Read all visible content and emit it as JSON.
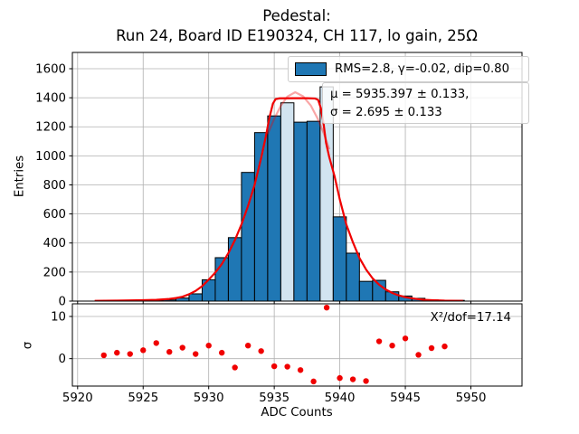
{
  "title": {
    "line1": "Pedestal:",
    "line2": "Run 24, Board ID E190324, CH 117, lo gain, 25Ω"
  },
  "legend": {
    "entry1": "RMS=2.8, γ=-0.02, dip=0.80",
    "mu_line": "μ = 5935.397 ± 0.133,",
    "sigma_line": "σ = 2.695 ± 0.133"
  },
  "annotation": {
    "chi2": "X²/dof=17.14"
  },
  "colors": {
    "bar": "#1f77b4",
    "bar_highlight": "#d2e4f0",
    "bar_edge": "#000000",
    "fit": "#f00000",
    "gauss": "#f00000",
    "residual_dot": "#f00000",
    "grid": "#b0b0b0",
    "spine": "#000000",
    "text": "#000000"
  },
  "chart_data": [
    {
      "type": "bar",
      "name": "pedestal-histogram",
      "title": "Pedestal: Run 24, Board ID E190324, CH 117, lo gain, 25Ω",
      "xlabel": "",
      "ylabel": "Entries",
      "xlim": [
        5919.6,
        5953.9
      ],
      "ylim": [
        0,
        1712
      ],
      "xticks": [
        5920,
        5925,
        5930,
        5935,
        5940,
        5945,
        5950
      ],
      "yticks": [
        0,
        200,
        400,
        600,
        800,
        1000,
        1200,
        1400,
        1600
      ],
      "grid": true,
      "bin_width": 1,
      "categories": [
        5926,
        5927,
        5928,
        5929,
        5930,
        5931,
        5932,
        5933,
        5934,
        5935,
        5936,
        5937,
        5938,
        5939,
        5940,
        5941,
        5942,
        5943,
        5944,
        5945,
        5946,
        5947,
        5949
      ],
      "values": [
        5,
        8,
        21,
        50,
        147,
        299,
        437,
        886,
        1160,
        1275,
        1365,
        1232,
        1238,
        1475,
        580,
        330,
        136,
        143,
        64,
        35,
        19,
        8,
        5
      ],
      "highlight_bins": [
        5936,
        5939
      ],
      "series": [
        {
          "name": "fit-with-dip",
          "alpha": 1,
          "points": [
            [
              5921.3,
              2
            ],
            [
              5923,
              3
            ],
            [
              5925,
              6
            ],
            [
              5926,
              9
            ],
            [
              5927,
              15
            ],
            [
              5927.5,
              21
            ],
            [
              5928,
              30
            ],
            [
              5928.5,
              47
            ],
            [
              5929,
              70
            ],
            [
              5929.5,
              103
            ],
            [
              5930,
              148
            ],
            [
              5930.5,
              196
            ],
            [
              5931,
              255
            ],
            [
              5931.5,
              330
            ],
            [
              5932,
              420
            ],
            [
              5932.5,
              528
            ],
            [
              5933,
              655
            ],
            [
              5933.5,
              800
            ],
            [
              5934,
              985
            ],
            [
              5934.35,
              1130
            ],
            [
              5934.65,
              1270
            ],
            [
              5934.9,
              1360
            ],
            [
              5935.1,
              1390
            ],
            [
              5935.4,
              1396
            ],
            [
              5936.5,
              1397
            ],
            [
              5937.5,
              1397
            ],
            [
              5938.1,
              1395
            ],
            [
              5938.35,
              1385
            ],
            [
              5938.55,
              1330
            ],
            [
              5938.75,
              1230
            ],
            [
              5938.95,
              1090
            ],
            [
              5939.2,
              990
            ],
            [
              5939.6,
              860
            ],
            [
              5940,
              700
            ],
            [
              5940.5,
              527
            ],
            [
              5941,
              405
            ],
            [
              5941.5,
              297
            ],
            [
              5942,
              218
            ],
            [
              5942.5,
              157
            ],
            [
              5943,
              113
            ],
            [
              5943.5,
              80
            ],
            [
              5944,
              56
            ],
            [
              5944.5,
              39
            ],
            [
              5945,
              27
            ],
            [
              5945.5,
              19
            ],
            [
              5946,
              13
            ],
            [
              5946.5,
              9
            ],
            [
              5947,
              6.5
            ],
            [
              5947.5,
              4.5
            ],
            [
              5948,
              3
            ],
            [
              5949,
              2
            ],
            [
              5949.4,
              1.5
            ]
          ]
        },
        {
          "name": "gaussian-component",
          "alpha": 0.35,
          "points": [
            [
              5934.5,
              1150
            ],
            [
              5935,
              1255
            ],
            [
              5935.5,
              1345
            ],
            [
              5936,
              1408
            ],
            [
              5936.6,
              1438
            ],
            [
              5937.2,
              1410
            ],
            [
              5937.8,
              1345
            ],
            [
              5938.3,
              1258
            ],
            [
              5938.8,
              1150
            ],
            [
              5939.2,
              1045
            ]
          ]
        }
      ]
    },
    {
      "type": "scatter",
      "name": "fit-residuals",
      "xlabel": "ADC Counts",
      "ylabel": "σ",
      "ylim": [
        -6.5,
        13
      ],
      "yticks": [
        0,
        10
      ],
      "grid": true,
      "x": [
        5922,
        5923,
        5924,
        5925,
        5926,
        5927,
        5928,
        5929,
        5930,
        5931,
        5932,
        5933,
        5934,
        5935,
        5936,
        5937,
        5938,
        5939,
        5940,
        5941,
        5942,
        5943,
        5944,
        5945,
        5946,
        5947,
        5948
      ],
      "y": [
        0.8,
        1.4,
        1.1,
        2.0,
        3.7,
        1.6,
        2.6,
        1.1,
        3.1,
        1.4,
        -2.1,
        3.1,
        1.8,
        -1.8,
        -1.9,
        -2.7,
        -5.4,
        12.1,
        -4.6,
        -4.9,
        -5.3,
        4.1,
        3.1,
        4.8,
        0.9,
        2.5,
        2.9
      ]
    }
  ]
}
